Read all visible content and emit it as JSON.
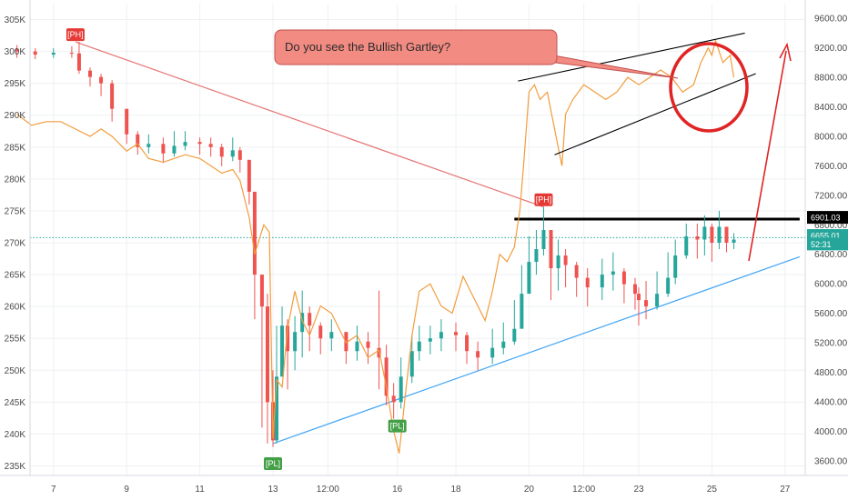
{
  "chart_data": {
    "type": "line",
    "title": "",
    "x_ticks": [
      "7",
      "9",
      "11",
      "13",
      "12:00",
      "16",
      "18",
      "20",
      "12:00",
      "23",
      "25",
      "27"
    ],
    "left_axis": {
      "ylim": [
        233500,
        307500
      ],
      "ticks": [
        "305K",
        "300K",
        "295K",
        "290K",
        "285K",
        "280K",
        "275K",
        "270K",
        "265K",
        "260K",
        "255K",
        "250K",
        "245K",
        "240K",
        "235K"
      ]
    },
    "right_axis": {
      "ylim": [
        3400,
        9800
      ],
      "ticks": [
        "9600.00",
        "9200.00",
        "8800.00",
        "8400.00",
        "8000.00",
        "7600.00",
        "7200.00",
        "6800.00",
        "6400.00",
        "6000.00",
        "5600.00",
        "5200.00",
        "4800.00",
        "4400.00",
        "4000.00",
        "3600.00"
      ]
    },
    "price_tags": [
      {
        "label": "6901.03",
        "value": 6901.03,
        "color": "#000000"
      },
      {
        "label": "6655.01",
        "value": 6655.01,
        "color": "#26a69a"
      },
      {
        "label": "52:31",
        "value": 6540,
        "color": "#26a69a"
      }
    ],
    "pivot_labels": [
      {
        "label": "[PH]",
        "x": 7.6,
        "y": 301500,
        "color": "#e53935"
      },
      {
        "label": "[PH]",
        "x": 20.4,
        "y": 275600,
        "color": "#e53935"
      },
      {
        "label": "[PL]",
        "x": 13.0,
        "y": 236500,
        "color": "#43a047"
      },
      {
        "label": "[PL]",
        "x": 16.4,
        "y": 242400,
        "color": "#43a047"
      }
    ],
    "callout": {
      "text": "Do you see the Bullish Gartley?",
      "fill": "#f28b82",
      "stroke": "#c0504d"
    },
    "series": [
      {
        "kind": "candlestick",
        "axis": "left",
        "up_color": "#26a69a",
        "down_color": "#ef5350",
        "x": [
          6.0,
          6.5,
          7.0,
          7.5,
          7.7,
          8.0,
          8.3,
          8.6,
          9.0,
          9.3,
          9.6,
          10.0,
          10.3,
          10.6,
          11.0,
          11.3,
          11.6,
          11.9,
          12.1,
          12.35,
          12.5,
          12.7,
          12.85,
          13.0,
          13.1,
          13.25,
          13.4,
          13.6,
          13.8,
          14.0,
          14.3,
          14.6,
          15.0,
          15.3,
          15.6,
          15.9,
          16.1,
          16.3,
          16.5,
          16.8,
          17.0,
          17.3,
          17.6,
          18.0,
          18.3,
          18.6,
          19.0,
          19.3,
          19.6,
          19.8,
          20.0,
          20.2,
          20.4,
          20.6,
          20.8,
          21.0,
          21.3,
          21.6,
          22.0,
          22.3,
          22.6,
          22.9,
          23.0,
          23.2,
          23.5,
          23.8,
          24.0,
          24.3,
          24.6,
          24.8,
          25.0,
          25.2,
          25.4,
          25.6
        ],
        "close": [
          300000,
          299500,
          299800,
          299700,
          297000,
          296000,
          295000,
          291000,
          287000,
          285000,
          285500,
          284000,
          285200,
          285800,
          285500,
          285000,
          283500,
          284500,
          283000,
          278000,
          265000,
          260000,
          245000,
          239000,
          249000,
          257000,
          253000,
          256000,
          259000,
          257000,
          255000,
          256000,
          253000,
          254500,
          253500,
          252000,
          246000,
          245000,
          249000,
          253000,
          254500,
          255000,
          256000,
          255500,
          253000,
          252000,
          253500,
          254500,
          256500,
          262000,
          267000,
          269000,
          272000,
          266000,
          268000,
          266500,
          264500,
          263000,
          265000,
          265500,
          263500,
          262000,
          261000,
          260000,
          262000,
          264500,
          268000,
          271000,
          270500,
          272500,
          270000,
          272500,
          270000,
          270500
        ],
        "high": [
          301000,
          300500,
          300500,
          300800,
          301500,
          297500,
          296500,
          295500,
          291000,
          287500,
          287000,
          286500,
          287500,
          287500,
          286500,
          286500,
          285500,
          286500,
          285000,
          283000,
          275000,
          265000,
          262000,
          250000,
          257000,
          260000,
          258000,
          258500,
          262500,
          260000,
          257500,
          258000,
          256000,
          257000,
          256000,
          262500,
          254000,
          248000,
          252000,
          255500,
          257000,
          257000,
          258000,
          257500,
          256000,
          254500,
          256500,
          257500,
          261000,
          266500,
          271000,
          272000,
          275600,
          271000,
          270500,
          269000,
          267000,
          266000,
          267500,
          268500,
          266000,
          264500,
          263000,
          264000,
          265500,
          268500,
          270500,
          273000,
          273000,
          274300,
          273000,
          275000,
          272500,
          271500
        ],
        "low": [
          299000,
          298800,
          299000,
          299000,
          296500,
          294500,
          293000,
          289000,
          285500,
          283800,
          284000,
          282500,
          283500,
          284500,
          283800,
          283500,
          282000,
          282800,
          281000,
          276000,
          258000,
          241000,
          238500,
          238000,
          238500,
          250000,
          247000,
          250000,
          252000,
          253000,
          252500,
          253000,
          251000,
          251500,
          251000,
          247000,
          244500,
          242400,
          244000,
          248000,
          251500,
          252500,
          253000,
          253000,
          251000,
          250000,
          251000,
          252500,
          254000,
          258000,
          263000,
          265000,
          268000,
          261000,
          262500,
          263000,
          261500,
          260000,
          261000,
          262500,
          260500,
          259500,
          257000,
          258000,
          259500,
          261500,
          263500,
          267500,
          267500,
          268000,
          267000,
          269000,
          268500,
          269000
        ]
      },
      {
        "kind": "line",
        "axis": "right",
        "color": "#f39c3c",
        "x": [
          6.0,
          6.4,
          6.8,
          7.2,
          7.6,
          8.0,
          8.3,
          8.6,
          9.0,
          9.3,
          9.6,
          10.0,
          10.3,
          10.6,
          11.0,
          11.3,
          11.6,
          11.9,
          12.1,
          12.35,
          12.5,
          12.75,
          12.9,
          13.0,
          13.1,
          13.25,
          13.4,
          13.6,
          13.8,
          14.0,
          14.3,
          14.6,
          15.0,
          15.3,
          15.6,
          15.9,
          16.1,
          16.3,
          16.45,
          16.6,
          16.8,
          17.0,
          17.3,
          17.6,
          17.9,
          18.2,
          18.5,
          18.8,
          19.0,
          19.2,
          19.4,
          19.6,
          19.75,
          19.85,
          20.0,
          20.15,
          20.3,
          20.5,
          20.7,
          20.9,
          21.0,
          21.2,
          21.5,
          21.8,
          22.1,
          22.4,
          22.7,
          23.0,
          23.3,
          23.6,
          23.9,
          24.2,
          24.5,
          24.7,
          24.9,
          25.0,
          25.1,
          25.3,
          25.5,
          25.6
        ],
        "y": [
          8300,
          8150,
          8200,
          8200,
          8100,
          8000,
          8100,
          8000,
          7800,
          7900,
          7700,
          7650,
          7700,
          7750,
          7700,
          7600,
          7500,
          7550,
          7400,
          6900,
          6400,
          6800,
          6700,
          3900,
          4700,
          4600,
          5400,
          5900,
          5500,
          5300,
          5700,
          5600,
          5200,
          5300,
          5000,
          5100,
          4600,
          4000,
          3700,
          4400,
          5300,
          5900,
          6000,
          5700,
          5600,
          6100,
          5800,
          5500,
          5900,
          6400,
          6300,
          6500,
          7000,
          7600,
          8600,
          8700,
          8500,
          8600,
          8100,
          7600,
          8300,
          8500,
          8700,
          8600,
          8500,
          8600,
          8800,
          8700,
          8800,
          8900,
          8800,
          8600,
          8700,
          9000,
          9200,
          9100,
          9300,
          9000,
          9100,
          8800
        ]
      }
    ],
    "annotations": [
      {
        "kind": "trendline",
        "color": "#e57373",
        "from": [
          7.6,
          301500
        ],
        "to": [
          20.4,
          275600
        ]
      },
      {
        "kind": "trendline",
        "color": "#42a5f5",
        "from": [
          13.0,
          238500
        ],
        "to": [
          27.4,
          267800
        ]
      },
      {
        "kind": "horizontal",
        "color": "#000000",
        "from": [
          19.6,
          273700
        ],
        "to": [
          27.4,
          273700
        ]
      },
      {
        "kind": "dotted-horizontal",
        "color": "#26a69a",
        "value": 270800
      },
      {
        "kind": "channel-upper",
        "color": "#000000",
        "axis": "right",
        "from": [
          19.7,
          8750
        ],
        "to": [
          25.9,
          9400
        ]
      },
      {
        "kind": "channel-lower",
        "color": "#000000",
        "axis": "right",
        "from": [
          20.7,
          7750
        ],
        "to": [
          26.2,
          8850
        ]
      },
      {
        "kind": "circle",
        "color": "#e02424"
      },
      {
        "kind": "arrow",
        "color": "#e02424"
      }
    ]
  }
}
